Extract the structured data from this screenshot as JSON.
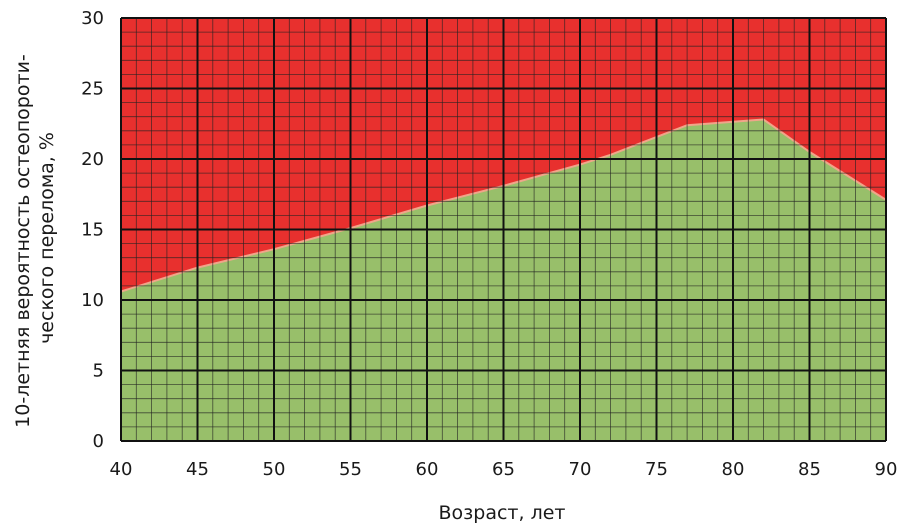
{
  "chart_data": {
    "type": "area",
    "xlabel": "Возраст, лет",
    "ylabel_lines": [
      "10-летняя вероятность остеопороти-",
      "ческого перелома, %"
    ],
    "xlim": [
      40,
      90
    ],
    "ylim": [
      0,
      30
    ],
    "x_ticks": [
      40,
      45,
      50,
      55,
      60,
      65,
      70,
      75,
      80,
      85,
      90
    ],
    "y_ticks": [
      0,
      5,
      10,
      15,
      20,
      25,
      30
    ],
    "x_tick_labels": [
      "40",
      "45",
      "50",
      "55",
      "60",
      "65",
      "70",
      "75",
      "80",
      "85",
      "90"
    ],
    "y_tick_labels": [
      "0",
      "5",
      "10",
      "15",
      "20",
      "25",
      "30"
    ],
    "grid": true,
    "minor_grid_per_major_x": 5,
    "minor_grid_per_major_y": 5,
    "boundary": {
      "x": [
        40,
        45,
        50,
        55,
        60,
        65,
        70,
        72,
        77,
        82,
        85,
        90
      ],
      "y": [
        10.6,
        12.3,
        13.6,
        15.1,
        16.7,
        18.1,
        19.6,
        20.3,
        22.4,
        22.8,
        20.5,
        17.1
      ]
    },
    "colors": {
      "below": "#98bf6a",
      "above": "#e8302e",
      "major_grid": "#111111",
      "minor_grid": "#222222",
      "boundary_line": "#f0a58a"
    }
  }
}
